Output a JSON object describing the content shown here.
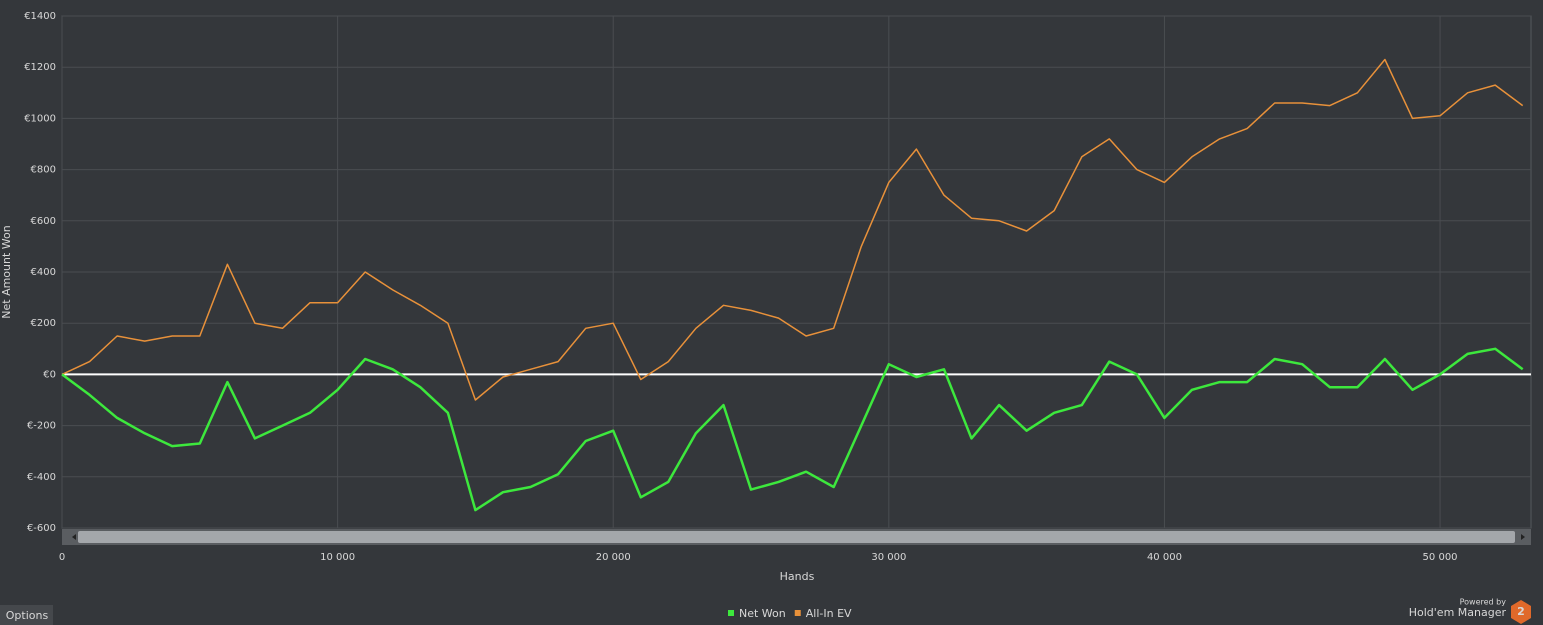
{
  "chart_data": {
    "type": "line",
    "ylabel": "Net Amount Won",
    "xlabel": "Hands",
    "x": [
      0,
      1000,
      2000,
      3000,
      4000,
      5000,
      6000,
      7000,
      8000,
      9000,
      10000,
      11000,
      12000,
      13000,
      14000,
      15000,
      16000,
      17000,
      18000,
      19000,
      20000,
      21000,
      22000,
      23000,
      24000,
      25000,
      26000,
      27000,
      28000,
      29000,
      30000,
      31000,
      32000,
      33000,
      34000,
      35000,
      36000,
      37000,
      38000,
      39000,
      40000,
      41000,
      42000,
      43000,
      44000,
      45000,
      46000,
      47000,
      48000,
      49000,
      50000,
      51000,
      52000,
      53000
    ],
    "series": [
      {
        "name": "Net Won",
        "color": "#3de83d",
        "values": [
          0,
          -80,
          -170,
          -230,
          -280,
          -270,
          -30,
          -250,
          -200,
          -150,
          -60,
          60,
          20,
          -50,
          -150,
          -530,
          -460,
          -440,
          -390,
          -260,
          -220,
          -480,
          -420,
          -230,
          -120,
          -450,
          -420,
          -380,
          -440,
          -200,
          40,
          -10,
          20,
          -250,
          -120,
          -220,
          -150,
          -120,
          50,
          0,
          -170,
          -60,
          -30,
          -30,
          60,
          40,
          -50,
          -50,
          60,
          -60,
          0,
          80,
          100,
          20
        ]
      },
      {
        "name": "All-In EV",
        "color": "#e8913a",
        "values": [
          0,
          50,
          150,
          130,
          150,
          150,
          430,
          200,
          180,
          280,
          280,
          400,
          330,
          270,
          200,
          -100,
          -10,
          20,
          50,
          180,
          200,
          -20,
          50,
          180,
          270,
          250,
          220,
          150,
          180,
          500,
          750,
          880,
          700,
          610,
          600,
          560,
          640,
          850,
          920,
          800,
          750,
          850,
          920,
          960,
          1060,
          1060,
          1050,
          1100,
          1230,
          1000,
          1010,
          1100,
          1130,
          1050
        ]
      }
    ],
    "xlim": [
      0,
      53300
    ],
    "ylim": [
      -600,
      1400
    ],
    "xticks": [
      0,
      {
        "value": 10000,
        "label": "10 000"
      },
      {
        "value": 20000,
        "label": "20 000"
      },
      {
        "value": 30000,
        "label": "30 000"
      },
      {
        "value": 40000,
        "label": "40 000"
      },
      {
        "value": 50000,
        "label": "50 000"
      }
    ],
    "yticks": [
      {
        "value": -600,
        "label": "€-600"
      },
      {
        "value": -400,
        "label": "€-400"
      },
      {
        "value": -200,
        "label": "€-200"
      },
      {
        "value": 0,
        "label": "€0"
      },
      {
        "value": 200,
        "label": "€200"
      },
      {
        "value": 400,
        "label": "€400"
      },
      {
        "value": 600,
        "label": "€600"
      },
      {
        "value": 800,
        "label": "€800"
      },
      {
        "value": 1000,
        "label": "€1000"
      },
      {
        "value": 1200,
        "label": "€1200"
      },
      {
        "value": 1400,
        "label": "€1400"
      }
    ],
    "grid": true,
    "legend": "bottom"
  },
  "ui": {
    "options_button": "Options",
    "powered_by": "Powered by",
    "brand": "Hold'em Manager",
    "brand_badge": "2"
  }
}
